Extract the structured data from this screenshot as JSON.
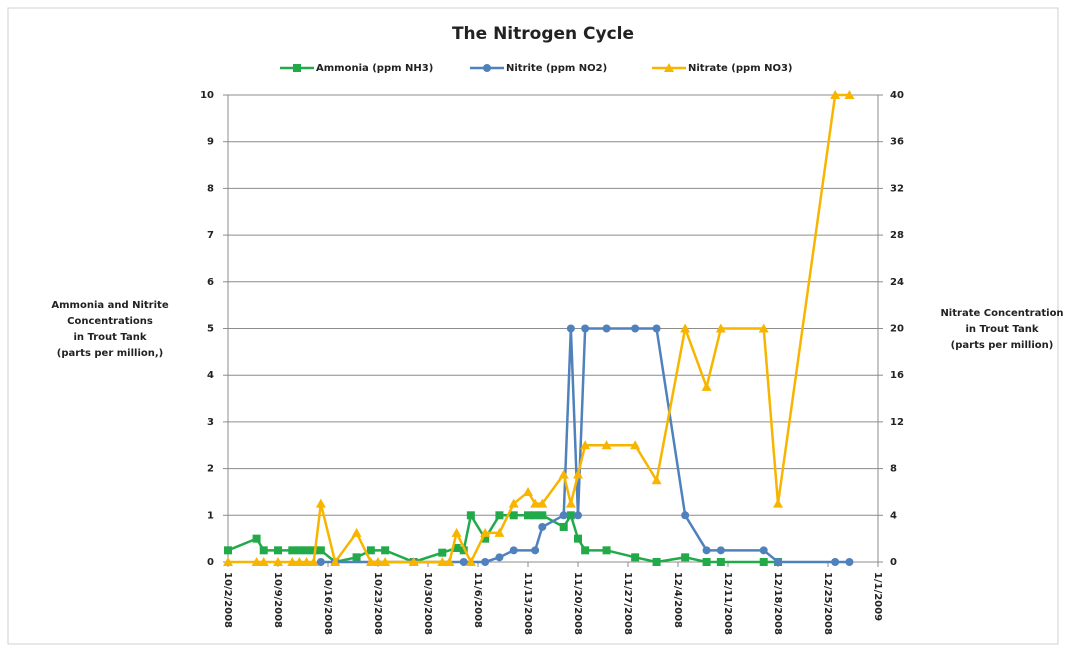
{
  "chart_data": {
    "type": "line",
    "title": "The Nitrogen Cycle",
    "y_label": [
      "Ammonia and Nitrite",
      "Concentrations",
      "in Trout Tank",
      "(parts per million,)"
    ],
    "y2_label": [
      "Nitrate Concentration",
      "in Trout Tank",
      "(parts per million)"
    ],
    "xlim": [
      "10/2/2008",
      "1/1/2009"
    ],
    "xticks": [
      "10/2/2008",
      "10/9/2008",
      "10/16/2008",
      "10/23/2008",
      "10/30/2008",
      "11/6/2008",
      "11/13/2008",
      "11/20/2008",
      "11/27/2008",
      "12/4/2008",
      "12/11/2008",
      "12/18/2008",
      "12/25/2008",
      "1/1/2009"
    ],
    "ylim": [
      0,
      10
    ],
    "yticks": [
      0,
      1,
      2,
      3,
      4,
      5,
      6,
      7,
      8,
      9,
      10
    ],
    "y2lim": [
      0,
      40
    ],
    "y2ticks": [
      0,
      4,
      8,
      12,
      16,
      20,
      24,
      28,
      32,
      36,
      40
    ],
    "grid": true,
    "legend": "top",
    "series": [
      {
        "name": "Ammonia (ppm NH3)",
        "color": "#22aa4a",
        "marker": "square",
        "x": [
          "10/2/2008",
          "10/6/2008",
          "10/7/2008",
          "10/9/2008",
          "10/11/2008",
          "10/12/2008",
          "10/13/2008",
          "10/14/2008",
          "10/15/2008",
          "10/17/2008",
          "10/20/2008",
          "10/22/2008",
          "10/24/2008",
          "10/28/2008",
          "11/1/2008",
          "11/3/2008",
          "11/4/2008",
          "11/5/2008",
          "11/7/2008",
          "11/9/2008",
          "11/11/2008",
          "11/13/2008",
          "11/14/2008",
          "11/15/2008",
          "11/18/2008",
          "11/19/2008",
          "11/20/2008",
          "11/21/2008",
          "11/24/2008",
          "11/28/2008",
          "12/1/2008",
          "12/5/2008",
          "12/8/2008",
          "12/10/2008",
          "12/16/2008",
          "12/18/2008"
        ],
        "values": [
          0.25,
          0.5,
          0.25,
          0.25,
          0.25,
          0.25,
          0.25,
          0.25,
          0.25,
          0,
          0.1,
          0.25,
          0.25,
          0,
          0.2,
          0.3,
          0.25,
          1,
          0.5,
          1,
          1,
          1,
          1,
          1,
          0.75,
          1,
          0.5,
          0.25,
          0.25,
          0.1,
          0,
          0.1,
          0,
          0,
          0,
          0
        ]
      },
      {
        "name": "Nitrite (ppm NO2)",
        "color": "#4f81bd",
        "marker": "circle",
        "x": [
          "10/15/2008",
          "10/17/2008",
          "10/28/2008",
          "11/4/2008",
          "11/7/2008",
          "11/9/2008",
          "11/11/2008",
          "11/14/2008",
          "11/15/2008",
          "11/18/2008",
          "11/19/2008",
          "11/20/2008",
          "11/21/2008",
          "11/24/2008",
          "11/28/2008",
          "12/1/2008",
          "12/5/2008",
          "12/8/2008",
          "12/10/2008",
          "12/16/2008",
          "12/18/2008",
          "12/26/2008",
          "12/28/2008"
        ],
        "values": [
          0,
          0,
          0,
          0,
          0,
          0.1,
          0.25,
          0.25,
          0.75,
          1,
          5,
          1,
          5,
          5,
          5,
          5,
          1,
          0.25,
          0.25,
          0.25,
          0,
          0,
          0
        ]
      },
      {
        "name": "Nitrate (ppm NO3)",
        "color": "#f8b500",
        "marker": "triangle",
        "axis": "y2",
        "x": [
          "10/2/2008",
          "10/6/2008",
          "10/7/2008",
          "10/9/2008",
          "10/11/2008",
          "10/12/2008",
          "10/13/2008",
          "10/14/2008",
          "10/15/2008",
          "10/17/2008",
          "10/20/2008",
          "10/22/2008",
          "10/23/2008",
          "10/24/2008",
          "10/28/2008",
          "11/1/2008",
          "11/2/2008",
          "11/3/2008",
          "11/5/2008",
          "11/7/2008",
          "11/9/2008",
          "11/11/2008",
          "11/13/2008",
          "11/14/2008",
          "11/15/2008",
          "11/18/2008",
          "11/19/2008",
          "11/20/2008",
          "11/21/2008",
          "11/24/2008",
          "11/28/2008",
          "12/1/2008",
          "12/5/2008",
          "12/8/2008",
          "12/10/2008",
          "12/16/2008",
          "12/18/2008",
          "12/26/2008",
          "12/28/2008"
        ],
        "values": [
          0,
          0,
          0,
          0,
          0,
          0,
          0,
          0,
          5,
          0,
          2.5,
          0,
          0,
          0,
          0,
          0,
          0,
          2.5,
          0,
          2.5,
          2.5,
          5,
          6,
          5,
          5,
          7.5,
          5,
          7.5,
          10,
          10,
          10,
          7,
          20,
          15,
          20,
          20,
          5,
          40,
          40
        ]
      }
    ]
  }
}
